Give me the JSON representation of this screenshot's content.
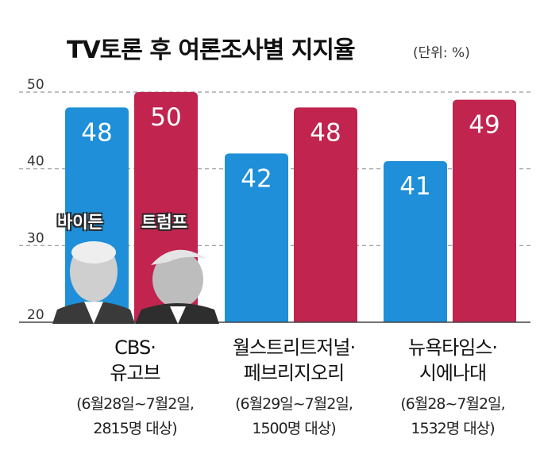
{
  "chart_data": {
    "type": "bar",
    "title": "TV토론 후 여론조사별 지지율",
    "unit": "(단위: %)",
    "categories": [
      {
        "name_lines": [
          "CBS·",
          "유고브"
        ],
        "note_lines": [
          "(6월28일~7월2일,",
          "2815명 대상)"
        ]
      },
      {
        "name_lines": [
          "월스트리트저널·",
          "페브리지오리"
        ],
        "note_lines": [
          "(6월29일~7월2일,",
          "1500명 대상)"
        ]
      },
      {
        "name_lines": [
          "뉴욕타임스·",
          "시에나대"
        ],
        "note_lines": [
          "(6월28~7월2일,",
          "1532명 대상)"
        ]
      }
    ],
    "series": [
      {
        "name": "바이든",
        "color": "#1e8fd8",
        "values": [
          48,
          42,
          41
        ]
      },
      {
        "name": "트럼프",
        "color": "#c0244f",
        "values": [
          50,
          48,
          49
        ]
      }
    ],
    "ylim": [
      20,
      50
    ],
    "yticks": [
      20,
      30,
      40,
      50
    ],
    "grid": "dashed",
    "legend": "photo labels on first group"
  },
  "colors": {
    "text": "#111111",
    "grid": "#9a9a9a",
    "baseline": "#444444"
  }
}
